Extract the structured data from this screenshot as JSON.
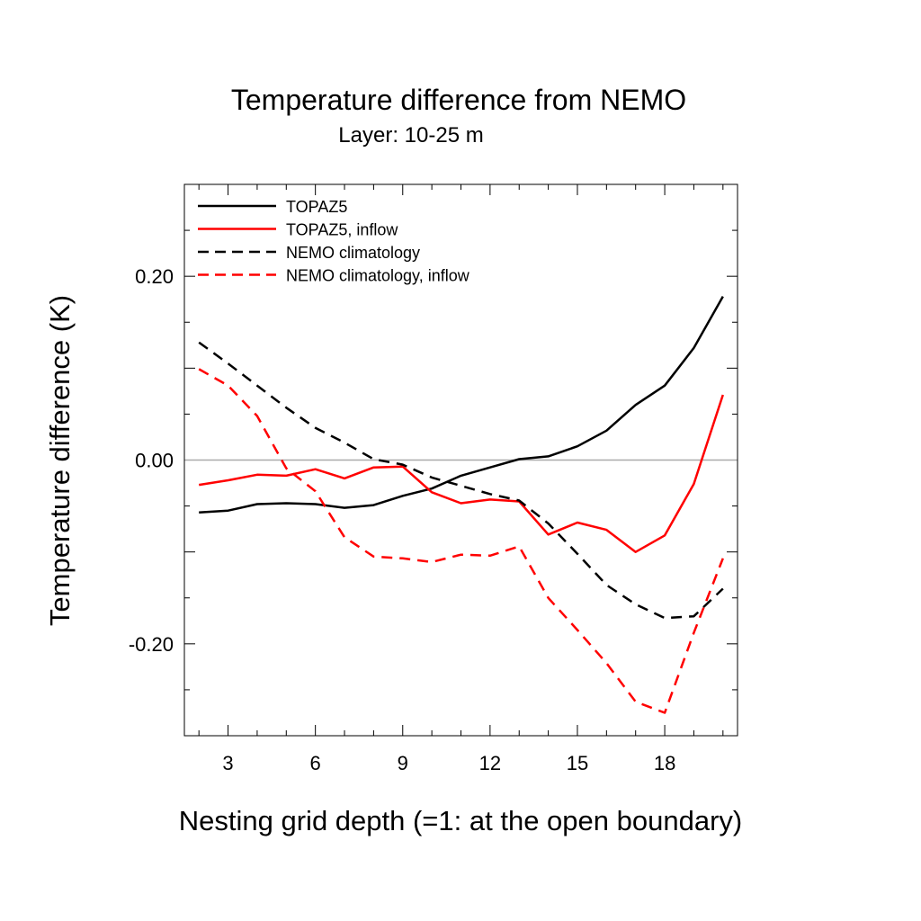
{
  "chart_data": {
    "type": "line",
    "title": "Temperature difference from NEMO",
    "subtitle": "Layer: 10-25 m",
    "xlabel": "Nesting grid depth (=1: at the open boundary)",
    "ylabel": "Temperature difference (K)",
    "xlim": [
      1.5,
      20.5
    ],
    "ylim": [
      -0.3,
      0.3
    ],
    "x_ticks": [
      3,
      6,
      9,
      12,
      15,
      18
    ],
    "x_tick_labels": [
      "3",
      "6",
      "9",
      "12",
      "15",
      "18"
    ],
    "y_ticks": [
      0.2,
      0.0,
      -0.2
    ],
    "y_tick_labels": [
      "0.20",
      "0.00",
      "-0.20"
    ],
    "grid": false,
    "reference_line": 0,
    "legend_position": "top-left",
    "x": [
      2,
      3,
      4,
      5,
      6,
      7,
      8,
      9,
      10,
      11,
      12,
      13,
      14,
      15,
      16,
      17,
      18,
      19,
      20
    ],
    "series": [
      {
        "name": "TOPAZ5",
        "color": "#000000",
        "dash": false,
        "values": [
          -0.057,
          -0.055,
          -0.048,
          -0.047,
          -0.048,
          -0.052,
          -0.049,
          -0.039,
          -0.031,
          -0.017,
          -0.008,
          0.001,
          0.004,
          0.015,
          0.032,
          0.06,
          0.081,
          0.122,
          0.178
        ]
      },
      {
        "name": "TOPAZ5, inflow",
        "color": "#ff0000",
        "dash": false,
        "values": [
          -0.027,
          -0.022,
          -0.016,
          -0.017,
          -0.01,
          -0.02,
          -0.008,
          -0.007,
          -0.035,
          -0.047,
          -0.043,
          -0.045,
          -0.081,
          -0.068,
          -0.076,
          -0.1,
          -0.082,
          -0.026,
          0.071
        ]
      },
      {
        "name": "NEMO climatology",
        "color": "#000000",
        "dash": true,
        "values": [
          0.128,
          0.105,
          0.081,
          0.057,
          0.035,
          0.019,
          0.001,
          -0.005,
          -0.019,
          -0.028,
          -0.037,
          -0.044,
          -0.069,
          -0.102,
          -0.136,
          -0.157,
          -0.172,
          -0.17,
          -0.14
        ]
      },
      {
        "name": "NEMO climatology, inflow",
        "color": "#ff0000",
        "dash": true,
        "values": [
          0.099,
          0.081,
          0.048,
          -0.009,
          -0.034,
          -0.084,
          -0.105,
          -0.107,
          -0.111,
          -0.103,
          -0.104,
          -0.094,
          -0.15,
          -0.185,
          -0.221,
          -0.263,
          -0.275,
          -0.188,
          -0.107
        ]
      }
    ]
  }
}
